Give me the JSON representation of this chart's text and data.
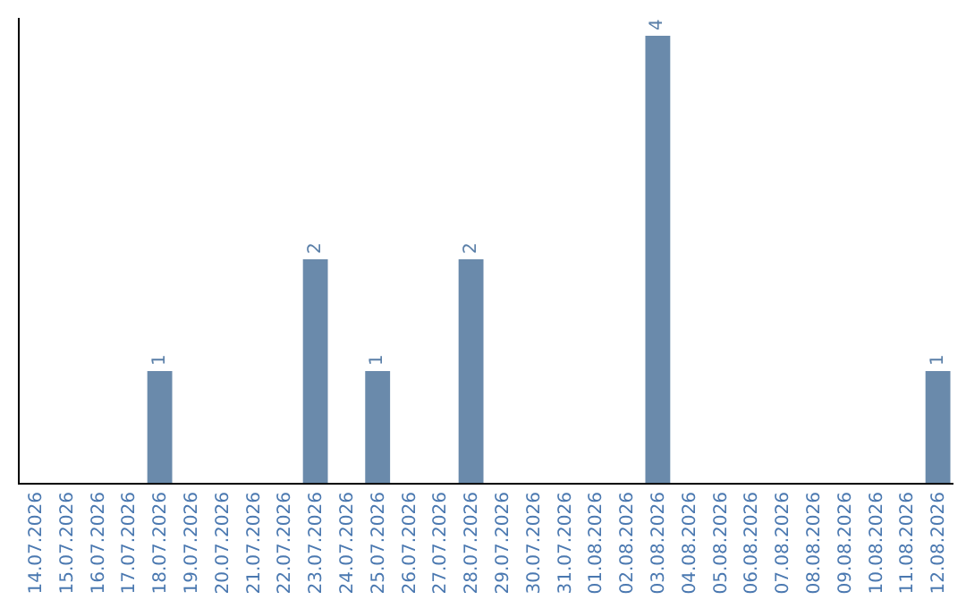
{
  "chart_data": {
    "type": "bar",
    "categories": [
      "14.07.2026",
      "15.07.2026",
      "16.07.2026",
      "17.07.2026",
      "18.07.2026",
      "19.07.2026",
      "20.07.2026",
      "21.07.2026",
      "22.07.2026",
      "23.07.2026",
      "24.07.2026",
      "25.07.2026",
      "26.07.2026",
      "27.07.2026",
      "28.07.2026",
      "29.07.2026",
      "30.07.2026",
      "31.07.2026",
      "01.08.2026",
      "02.08.2026",
      "03.08.2026",
      "04.08.2026",
      "05.08.2026",
      "06.08.2026",
      "07.08.2026",
      "08.08.2026",
      "09.08.2026",
      "10.08.2026",
      "11.08.2026",
      "12.08.2026"
    ],
    "values": [
      0,
      0,
      0,
      0,
      1,
      0,
      0,
      0,
      0,
      2,
      0,
      1,
      0,
      0,
      2,
      0,
      0,
      0,
      0,
      0,
      4,
      0,
      0,
      0,
      0,
      0,
      0,
      0,
      0,
      1
    ],
    "value_labels": [
      null,
      null,
      null,
      null,
      "1",
      null,
      null,
      null,
      null,
      "2",
      null,
      "1",
      null,
      null,
      "2",
      null,
      null,
      null,
      null,
      null,
      "4",
      null,
      null,
      null,
      null,
      null,
      null,
      null,
      null,
      "1"
    ],
    "color": "#6a8aab",
    "tick_labels": "x"
  }
}
